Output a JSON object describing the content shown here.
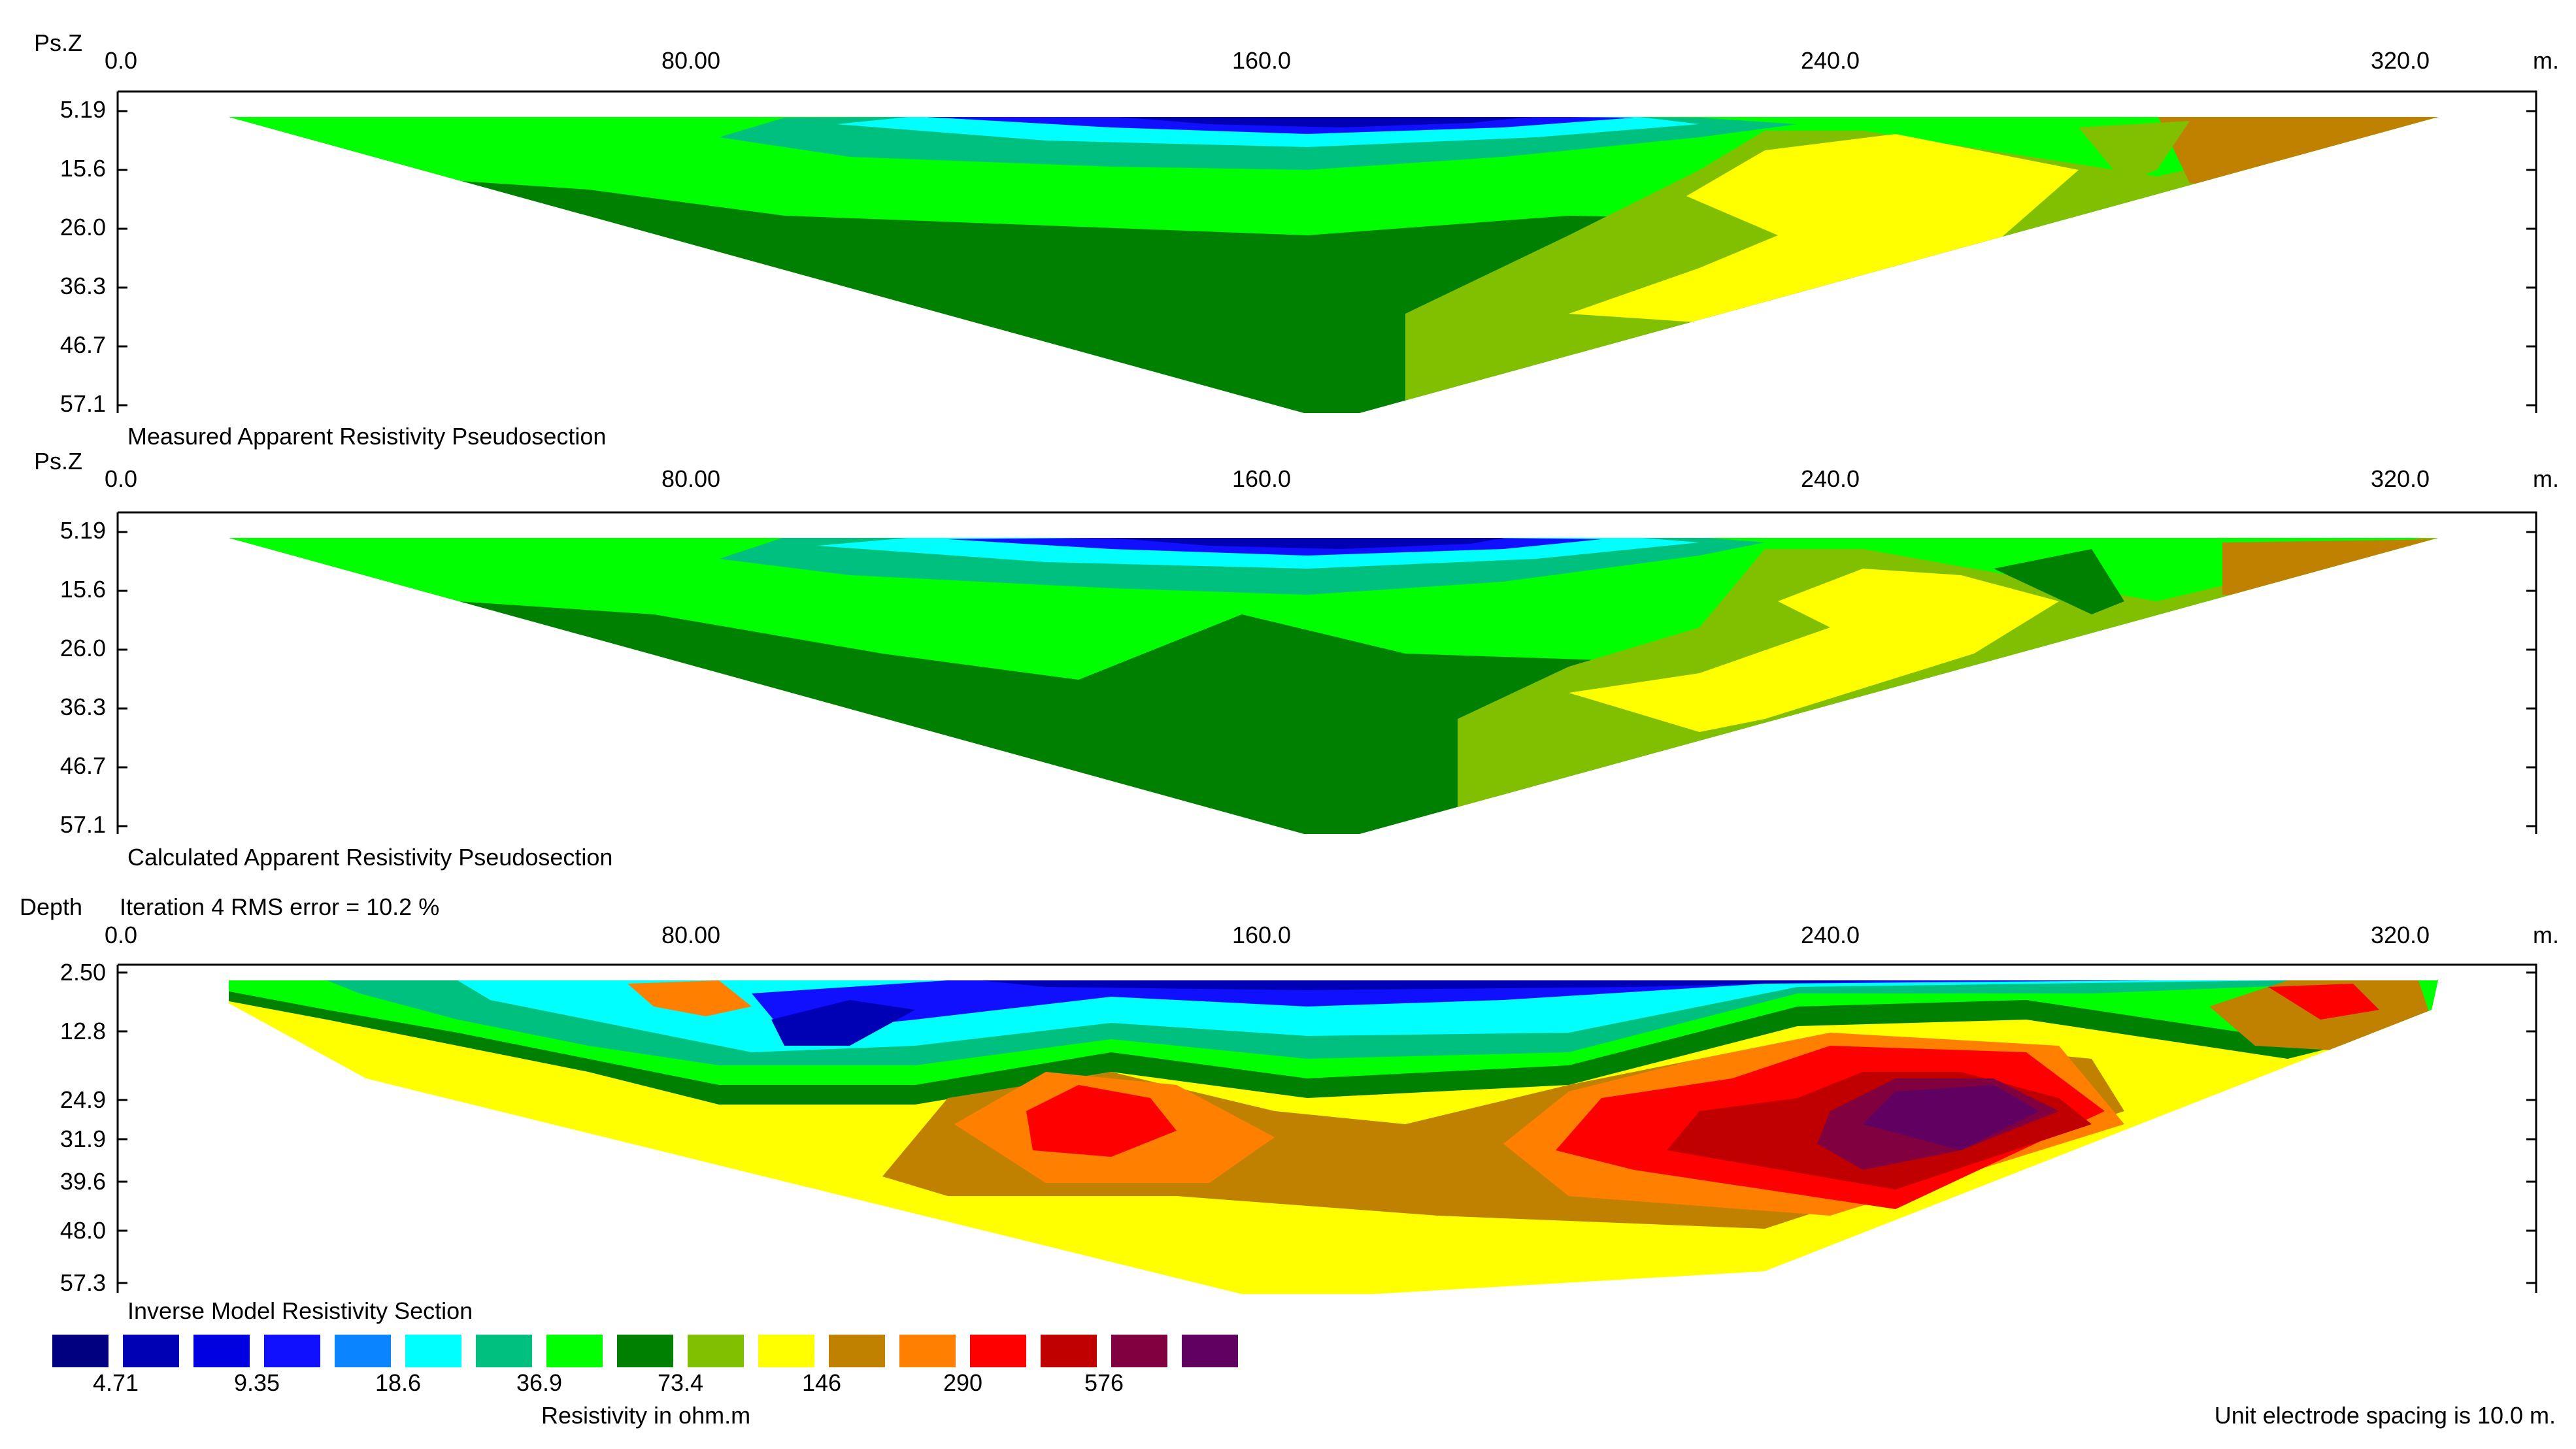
{
  "panels": [
    {
      "id": "measured",
      "axis_label": "Ps.Z",
      "x_ticks": [
        "0.0",
        "80.00",
        "160.0",
        "240.0",
        "320.0"
      ],
      "x_unit": "m.",
      "y_ticks": [
        "5.19",
        "15.6",
        "26.0",
        "36.3",
        "46.7",
        "57.1"
      ],
      "caption": "Measured Apparent Resistivity Pseudosection"
    },
    {
      "id": "calculated",
      "axis_label": "Ps.Z",
      "x_ticks": [
        "0.0",
        "80.00",
        "160.0",
        "240.0",
        "320.0"
      ],
      "x_unit": "m.",
      "y_ticks": [
        "5.19",
        "15.6",
        "26.0",
        "36.3",
        "46.7",
        "57.1"
      ],
      "caption": "Calculated Apparent Resistivity Pseudosection"
    },
    {
      "id": "inverse",
      "axis_label": "Depth",
      "iteration_text": "Iteration 4 RMS error = 10.2 %",
      "x_ticks": [
        "0.0",
        "80.00",
        "160.0",
        "240.0",
        "320.0"
      ],
      "x_unit": "m.",
      "y_ticks": [
        "2.50",
        "12.8",
        "24.9",
        "31.9",
        "39.6",
        "48.0",
        "57.3"
      ],
      "caption": "Inverse Model Resistivity Section"
    }
  ],
  "legend": {
    "colors": [
      "#000080",
      "#0000b4",
      "#0000e0",
      "#1010ff",
      "#0a84ff",
      "#00ffff",
      "#00c080",
      "#00ff00",
      "#008000",
      "#80c000",
      "#ffff00",
      "#c08000",
      "#ff8000",
      "#ff0000",
      "#c00000",
      "#800040",
      "#600060"
    ],
    "labels": [
      "4.71",
      "9.35",
      "18.6",
      "36.9",
      "73.4",
      "146",
      "290",
      "576"
    ],
    "title": "Resistivity in ohm.m"
  },
  "footer": {
    "spacing_note": "Unit electrode spacing is 10.0 m."
  }
}
